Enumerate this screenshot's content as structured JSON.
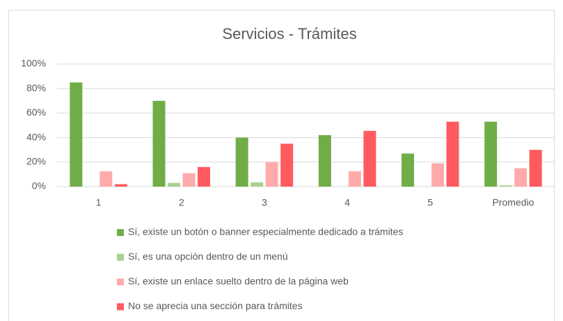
{
  "chart_data": {
    "type": "bar",
    "title": "Servicios - Trámites",
    "categories": [
      "1",
      "2",
      "3",
      "4",
      "5",
      "Promedio"
    ],
    "series": [
      {
        "name": "Sí, existe un botón o banner especialmente dedicado a trámites",
        "color": "#70ad47",
        "values": [
          85,
          70,
          40,
          42,
          27,
          53
        ]
      },
      {
        "name": "Sí, es una opción dentro de un menú",
        "color": "#a9d18e",
        "values": [
          0,
          3,
          3.5,
          0,
          0,
          1
        ]
      },
      {
        "name": "Sí, existe un enlace suelto dentro de la página web",
        "color": "#ffabab",
        "values": [
          12.5,
          11,
          20,
          12.5,
          19,
          15
        ]
      },
      {
        "name": "No se aprecia una sección para trámites",
        "color": "#ff5b5f",
        "values": [
          2,
          16,
          35,
          45.5,
          53,
          30
        ]
      }
    ],
    "ylim": [
      0,
      100
    ],
    "yticks": [
      {
        "value": 0,
        "label": "0%"
      },
      {
        "value": 20,
        "label": "20%"
      },
      {
        "value": 40,
        "label": "40%"
      },
      {
        "value": 60,
        "label": "60%"
      },
      {
        "value": 80,
        "label": "80%"
      },
      {
        "value": 100,
        "label": "100%"
      }
    ],
    "grid": true,
    "legend": "bottom"
  }
}
